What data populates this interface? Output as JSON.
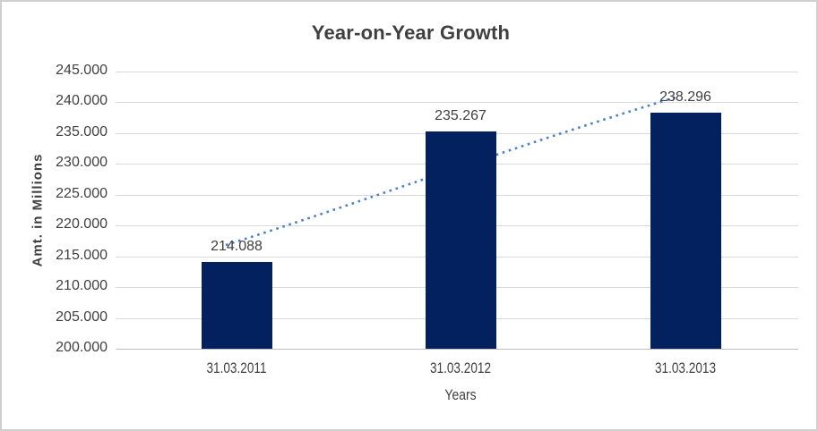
{
  "window": {
    "background": "#ffffff",
    "border_color": "#cfcfcf"
  },
  "chart_data": {
    "type": "bar",
    "title": "Year-on-Year Growth",
    "xlabel": "Years",
    "ylabel": "Amt. in Millions",
    "categories": [
      "31.03.2011",
      "31.03.2012",
      "31.03.2013"
    ],
    "values": [
      214088,
      235267,
      238296
    ],
    "data_labels": [
      "214.088",
      "235.267",
      "238.296"
    ],
    "ylim": [
      200000,
      245000
    ],
    "ytick_step": 5000,
    "yticks": [
      {
        "value": 200000,
        "label": "200.000"
      },
      {
        "value": 205000,
        "label": "205.000"
      },
      {
        "value": 210000,
        "label": "210.000"
      },
      {
        "value": 215000,
        "label": "215.000"
      },
      {
        "value": 220000,
        "label": "220.000"
      },
      {
        "value": 225000,
        "label": "225.000"
      },
      {
        "value": 230000,
        "label": "230.000"
      },
      {
        "value": 235000,
        "label": "235.000"
      },
      {
        "value": 240000,
        "label": "240.000"
      },
      {
        "value": 245000,
        "label": "245.000"
      }
    ],
    "grid": "horizontal",
    "legend": "none",
    "bar_color": "#03215f",
    "trendline": {
      "style": "dotted",
      "color": "#4a80c9"
    },
    "gridline_color": "#d9d9d9",
    "axisline_color": "#bfbfbf",
    "text_color": "#404040"
  }
}
